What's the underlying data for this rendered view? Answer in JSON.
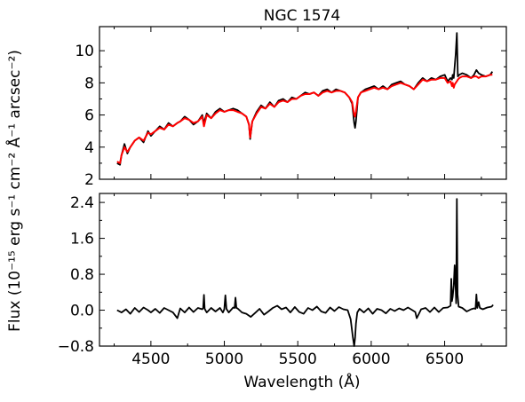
{
  "chart_data": [
    {
      "type": "line",
      "title": "NGC 1574",
      "xlabel": "",
      "ylabel": "",
      "xlim": [
        4150,
        6920
      ],
      "ylim": [
        2,
        11.5
      ],
      "yticks": [
        2,
        4,
        6,
        8,
        10
      ],
      "ytick_labels": [
        "2",
        "4",
        "6",
        "8",
        "10"
      ],
      "grid": false,
      "series": [
        {
          "color": "#000000",
          "x": [
            4270,
            4290,
            4300,
            4320,
            4340,
            4360,
            4390,
            4420,
            4450,
            4480,
            4500,
            4530,
            4560,
            4590,
            4620,
            4650,
            4680,
            4700,
            4730,
            4760,
            4790,
            4820,
            4850,
            4861,
            4880,
            4910,
            4940,
            4970,
            5000,
            5030,
            5060,
            5090,
            5120,
            5150,
            5168,
            5176,
            5190,
            5220,
            5250,
            5280,
            5310,
            5340,
            5370,
            5400,
            5430,
            5460,
            5490,
            5520,
            5550,
            5580,
            5610,
            5640,
            5670,
            5700,
            5730,
            5760,
            5790,
            5820,
            5850,
            5870,
            5884,
            5890,
            5896,
            5910,
            5930,
            5960,
            5990,
            6020,
            6050,
            6080,
            6110,
            6140,
            6170,
            6200,
            6230,
            6260,
            6290,
            6320,
            6350,
            6380,
            6410,
            6440,
            6470,
            6500,
            6520,
            6540,
            6550,
            6555,
            6562,
            6568,
            6575,
            6583,
            6590,
            6600,
            6620,
            6650,
            6680,
            6700,
            6716,
            6731,
            6750,
            6780,
            6810,
            6825
          ],
          "y": [
            3.0,
            2.9,
            3.5,
            4.2,
            3.6,
            4.0,
            4.4,
            4.6,
            4.3,
            5.0,
            4.7,
            5.0,
            5.3,
            5.1,
            5.5,
            5.3,
            5.5,
            5.6,
            5.9,
            5.7,
            5.4,
            5.6,
            6.0,
            5.5,
            6.1,
            5.8,
            6.2,
            6.4,
            6.2,
            6.3,
            6.4,
            6.3,
            6.1,
            5.9,
            5.4,
            4.5,
            5.6,
            6.2,
            6.6,
            6.4,
            6.8,
            6.5,
            6.9,
            7.0,
            6.8,
            7.1,
            7.0,
            7.2,
            7.4,
            7.3,
            7.4,
            7.2,
            7.5,
            7.6,
            7.4,
            7.6,
            7.5,
            7.4,
            7.1,
            6.7,
            5.5,
            5.2,
            5.6,
            7.1,
            7.4,
            7.6,
            7.7,
            7.8,
            7.6,
            7.8,
            7.6,
            7.9,
            8.0,
            8.1,
            7.9,
            7.8,
            7.6,
            8.0,
            8.3,
            8.1,
            8.3,
            8.2,
            8.4,
            8.5,
            8.1,
            8.3,
            8.2,
            8.5,
            8.3,
            9.0,
            9.8,
            11.1,
            8.4,
            8.5,
            8.6,
            8.5,
            8.3,
            8.5,
            8.8,
            8.6,
            8.5,
            8.4,
            8.5,
            8.7
          ]
        },
        {
          "color": "#ff0000",
          "x": [
            4270,
            4290,
            4300,
            4320,
            4340,
            4360,
            4390,
            4420,
            4450,
            4480,
            4500,
            4530,
            4560,
            4590,
            4620,
            4650,
            4680,
            4700,
            4730,
            4760,
            4790,
            4820,
            4850,
            4861,
            4880,
            4910,
            4940,
            4970,
            5000,
            5030,
            5060,
            5090,
            5120,
            5150,
            5168,
            5176,
            5190,
            5220,
            5250,
            5280,
            5310,
            5340,
            5370,
            5400,
            5430,
            5460,
            5490,
            5520,
            5550,
            5580,
            5610,
            5640,
            5670,
            5700,
            5730,
            5760,
            5790,
            5820,
            5850,
            5870,
            5884,
            5890,
            5896,
            5910,
            5930,
            5960,
            5990,
            6020,
            6050,
            6080,
            6110,
            6140,
            6170,
            6200,
            6230,
            6260,
            6290,
            6320,
            6350,
            6380,
            6410,
            6440,
            6470,
            6500,
            6520,
            6540,
            6550,
            6555,
            6562,
            6568,
            6575,
            6583,
            6590,
            6600,
            6620,
            6650,
            6680,
            6700,
            6716,
            6731,
            6750,
            6780,
            6810,
            6825
          ],
          "y": [
            3.1,
            3.0,
            3.5,
            4.0,
            3.7,
            4.0,
            4.4,
            4.6,
            4.4,
            4.9,
            4.8,
            5.0,
            5.2,
            5.1,
            5.4,
            5.3,
            5.5,
            5.6,
            5.8,
            5.7,
            5.5,
            5.6,
            5.9,
            5.3,
            6.0,
            5.8,
            6.1,
            6.3,
            6.2,
            6.3,
            6.3,
            6.2,
            6.1,
            5.9,
            5.4,
            4.6,
            5.6,
            6.1,
            6.5,
            6.4,
            6.7,
            6.5,
            6.8,
            6.9,
            6.8,
            7.0,
            7.0,
            7.2,
            7.3,
            7.3,
            7.4,
            7.2,
            7.4,
            7.5,
            7.4,
            7.5,
            7.5,
            7.4,
            7.1,
            6.8,
            6.0,
            5.9,
            6.2,
            7.1,
            7.4,
            7.5,
            7.6,
            7.7,
            7.6,
            7.7,
            7.6,
            7.8,
            7.9,
            8.0,
            7.9,
            7.8,
            7.6,
            7.9,
            8.2,
            8.1,
            8.2,
            8.2,
            8.3,
            8.3,
            8.0,
            8.1,
            7.8,
            8.0,
            7.7,
            7.9,
            8.0,
            8.1,
            8.2,
            8.3,
            8.4,
            8.4,
            8.3,
            8.4,
            8.4,
            8.3,
            8.4,
            8.4,
            8.5,
            8.5
          ]
        }
      ]
    },
    {
      "type": "line",
      "title": "",
      "xlabel": "Wavelength (Å)",
      "ylabel": "",
      "xlim": [
        4150,
        6920
      ],
      "ylim": [
        -0.8,
        2.6
      ],
      "xticks": [
        4500,
        5000,
        5500,
        6000,
        6500
      ],
      "xtick_labels": [
        "4500",
        "5000",
        "5500",
        "6000",
        "6500"
      ],
      "yticks": [
        -0.8,
        0.0,
        0.8,
        1.6,
        2.4
      ],
      "ytick_labels": [
        "−0.8",
        "0.0",
        "0.8",
        "1.6",
        "2.4"
      ],
      "grid": false,
      "series": [
        {
          "color": "#000000",
          "x": [
            4270,
            4300,
            4330,
            4360,
            4390,
            4420,
            4450,
            4480,
            4500,
            4530,
            4560,
            4590,
            4620,
            4650,
            4680,
            4700,
            4730,
            4760,
            4790,
            4820,
            4850,
            4856,
            4861,
            4866,
            4880,
            4910,
            4940,
            4970,
            4990,
            5000,
            5007,
            5014,
            5030,
            5060,
            5070,
            5076,
            5082,
            5090,
            5120,
            5150,
            5180,
            5210,
            5240,
            5270,
            5300,
            5330,
            5360,
            5390,
            5420,
            5450,
            5480,
            5510,
            5540,
            5570,
            5600,
            5630,
            5660,
            5690,
            5720,
            5750,
            5780,
            5810,
            5840,
            5860,
            5875,
            5884,
            5890,
            5896,
            5905,
            5920,
            5950,
            5980,
            6010,
            6040,
            6070,
            6100,
            6130,
            6160,
            6190,
            6220,
            6250,
            6280,
            6300,
            6310,
            6340,
            6370,
            6400,
            6430,
            6460,
            6490,
            6520,
            6540,
            6545,
            6550,
            6555,
            6562,
            6568,
            6575,
            6578,
            6583,
            6588,
            6595,
            6620,
            6650,
            6680,
            6700,
            6710,
            6716,
            6722,
            6731,
            6740,
            6760,
            6790,
            6820,
            6830
          ],
          "y": [
            0.0,
            -0.05,
            0.02,
            -0.08,
            0.05,
            -0.04,
            0.06,
            0.0,
            -0.05,
            0.03,
            -0.06,
            0.05,
            0.0,
            -0.05,
            -0.18,
            0.04,
            -0.05,
            0.06,
            -0.04,
            0.05,
            0.02,
            0.05,
            0.34,
            0.03,
            -0.05,
            0.05,
            -0.03,
            0.05,
            -0.05,
            0.02,
            0.33,
            0.03,
            -0.05,
            0.06,
            0.05,
            0.28,
            0.05,
            0.04,
            -0.05,
            -0.08,
            -0.15,
            -0.06,
            0.03,
            -0.1,
            -0.03,
            0.05,
            0.1,
            0.02,
            0.06,
            -0.05,
            0.07,
            -0.04,
            -0.08,
            0.05,
            0.0,
            0.08,
            -0.03,
            -0.06,
            0.06,
            -0.02,
            0.07,
            0.02,
            0.0,
            -0.2,
            -0.6,
            -0.8,
            -0.62,
            -0.3,
            -0.05,
            0.03,
            -0.05,
            0.04,
            -0.08,
            0.03,
            0.0,
            -0.07,
            0.03,
            -0.02,
            0.04,
            0.0,
            0.06,
            0.0,
            -0.04,
            -0.18,
            0.02,
            0.05,
            -0.04,
            0.06,
            -0.04,
            0.05,
            0.06,
            0.1,
            0.7,
            0.2,
            0.3,
            0.55,
            1.0,
            0.45,
            0.15,
            2.48,
            0.35,
            0.08,
            0.05,
            -0.03,
            0.02,
            0.04,
            0.03,
            0.35,
            0.05,
            0.18,
            0.05,
            0.02,
            0.06,
            0.08,
            0.12
          ]
        }
      ]
    }
  ],
  "shared_ylabel": "Flux (10⁻¹⁵ erg s⁻¹ cm⁻² Å⁻¹ arcsec⁻²)"
}
